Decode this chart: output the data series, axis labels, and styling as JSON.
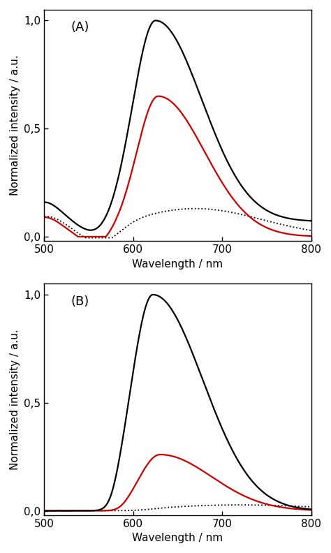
{
  "xlim": [
    500,
    800
  ],
  "ylim": [
    -0.02,
    1.05
  ],
  "yticks": [
    0.0,
    0.5,
    1.0
  ],
  "ytick_labels": [
    "0,0",
    "0,5",
    "1,0"
  ],
  "xticks": [
    500,
    600,
    700,
    800
  ],
  "xlabel": "Wavelength / nm",
  "ylabel": "Normalized intensity / a.u.",
  "panel_labels": [
    "(A)",
    "(B)"
  ],
  "colors": {
    "black": "#000000",
    "red": "#cc0000"
  },
  "linewidth_solid": 1.6,
  "linewidth_dot": 1.3,
  "background": "#ffffff"
}
